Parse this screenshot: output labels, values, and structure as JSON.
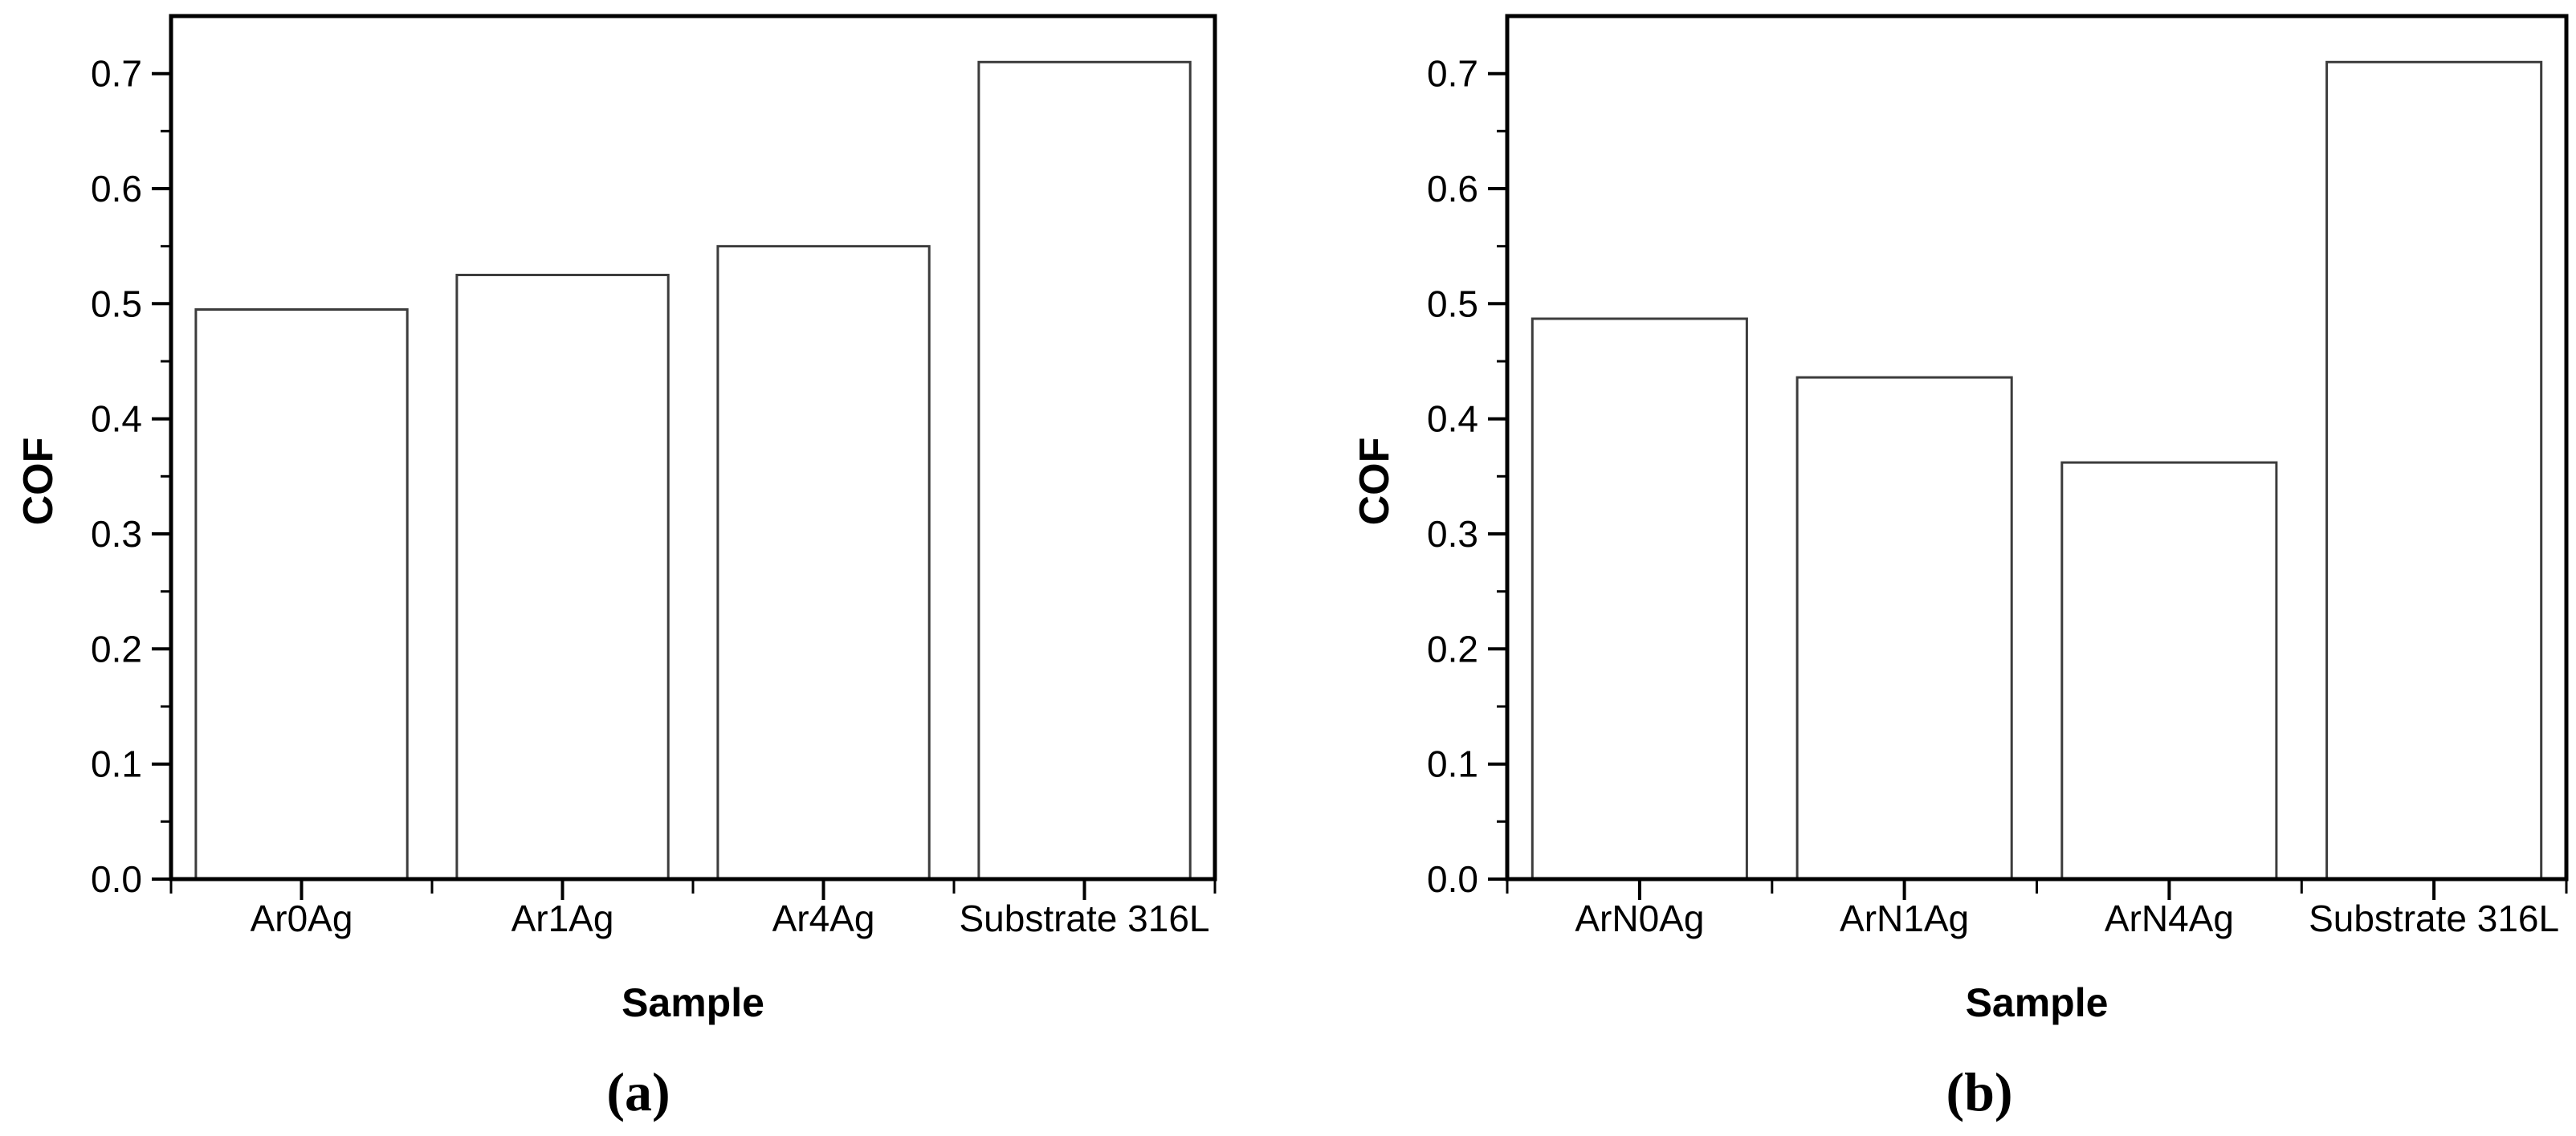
{
  "figure": {
    "background": "#ffffff",
    "panel_count": 2
  },
  "chart_data": [
    {
      "type": "bar",
      "caption": "(a)",
      "categories": [
        "Ar0Ag",
        "Ar1Ag",
        "Ar4Ag",
        "Substrate 316L"
      ],
      "values": [
        0.495,
        0.525,
        0.55,
        0.71
      ],
      "xlabel": "Sample",
      "ylabel": "COF",
      "ylim": [
        0,
        0.75
      ],
      "ytick_labels": [
        "0.0",
        "0.1",
        "0.2",
        "0.3",
        "0.4",
        "0.5",
        "0.6",
        "0.7"
      ],
      "ytick_step": 0.1,
      "ytick_minor_step": 0.05,
      "grid": false,
      "legend": false,
      "bar_fill": "#ffffff",
      "bar_edge": "#3c3c3c",
      "axis_color": "#000000",
      "text_color": "#000000"
    },
    {
      "type": "bar",
      "caption": "(b)",
      "categories": [
        "ArN0Ag",
        "ArN1Ag",
        "ArN4Ag",
        "Substrate 316L"
      ],
      "values": [
        0.487,
        0.436,
        0.362,
        0.71
      ],
      "xlabel": "Sample",
      "ylabel": "COF",
      "ylim": [
        0,
        0.75
      ],
      "ytick_labels": [
        "0.0",
        "0.1",
        "0.2",
        "0.3",
        "0.4",
        "0.5",
        "0.6",
        "0.7"
      ],
      "ytick_step": 0.1,
      "ytick_minor_step": 0.05,
      "grid": false,
      "legend": false,
      "bar_fill": "#ffffff",
      "bar_edge": "#3c3c3c",
      "axis_color": "#000000",
      "text_color": "#000000"
    }
  ]
}
